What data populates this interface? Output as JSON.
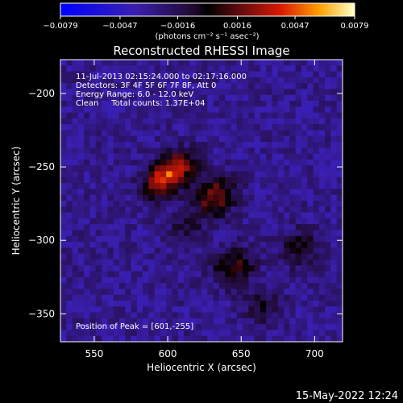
{
  "chart_data": {
    "type": "heatmap",
    "title": "Reconstructed RHESSI Image",
    "xlabel": "Heliocentric X (arcsec)",
    "ylabel": "Heliocentric Y (arcsec)",
    "xlim": [
      527,
      719
    ],
    "ylim": [
      -369,
      -177
    ],
    "x_ticks": [
      550,
      600,
      650,
      700
    ],
    "y_ticks": [
      -200,
      -250,
      -300,
      -350
    ],
    "x_tick_labels": [
      "550",
      "600",
      "650",
      "700"
    ],
    "y_tick_labels": [
      "−200",
      "−250",
      "−300",
      "−350"
    ],
    "colorbar": {
      "min": -0.0079,
      "max": 0.0079,
      "ticks": [
        -0.0079,
        -0.0047,
        -0.0016,
        0.0016,
        0.0047,
        0.0079
      ],
      "tick_labels": [
        "−0.0079",
        "−0.0047",
        "−0.0016",
        "0.0016",
        "0.0047",
        "0.0079"
      ],
      "unit_label": "(photons cm⁻² s⁻¹ asec⁻²)"
    },
    "sources": [
      {
        "x": 601,
        "y": -255,
        "peak": 0.0079
      },
      {
        "x": 632,
        "y": -270,
        "peak": 0.0052
      },
      {
        "x": 645,
        "y": -318,
        "peak": 0.0038
      },
      {
        "x": 690,
        "y": -305,
        "peak": 0.0028
      },
      {
        "x": 612,
        "y": -292,
        "peak": 0.002
      },
      {
        "x": 665,
        "y": -345,
        "peak": 0.0022
      }
    ],
    "annotations": {
      "line1": "11-Jul-2013 02:15:24.000 to 02:17:16.000",
      "line2": "Detectors: 3F 4F 5F 6F 7F 8F, Att 0",
      "line3": "Energy Range: 6.0 - 12.0 keV",
      "line4": "Clean     Total counts: 1.37E+04",
      "peak": "Position of Peak = [601,-255]"
    }
  },
  "footer": {
    "timestamp": "15-May-2022 12:24"
  }
}
